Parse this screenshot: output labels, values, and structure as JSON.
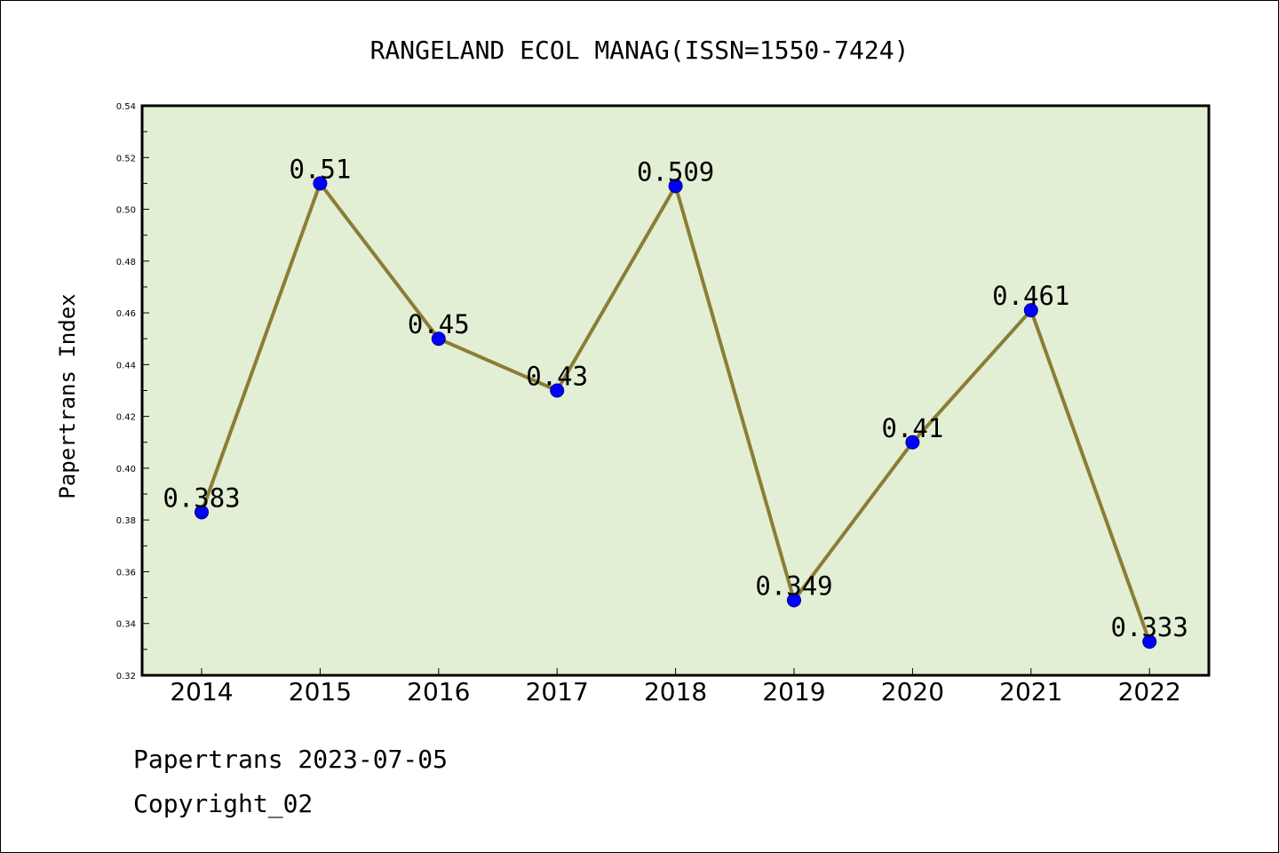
{
  "chart_data": {
    "type": "line",
    "title": "RANGELAND ECOL MANAG(ISSN=1550-7424)",
    "xlabel": "",
    "ylabel": "Papertrans Index",
    "categories": [
      "2014",
      "2015",
      "2016",
      "2017",
      "2018",
      "2019",
      "2020",
      "2021",
      "2022"
    ],
    "values": [
      0.383,
      0.51,
      0.45,
      0.43,
      0.509,
      0.349,
      0.41,
      0.461,
      0.333
    ],
    "data_labels": [
      "0.383",
      "0.51",
      "0.45",
      "0.43",
      "0.509",
      "0.349",
      "0.41",
      "0.461",
      "0.333"
    ],
    "ylim": [
      0.32,
      0.54
    ],
    "yticks": [
      "0.32",
      "0.34",
      "0.36",
      "0.38",
      "0.40",
      "0.42",
      "0.44",
      "0.46",
      "0.48",
      "0.50",
      "0.52",
      "0.54"
    ],
    "grid": false,
    "legend": "none",
    "colors": {
      "plot_background": "#e2efd5",
      "line": "#8b7d35",
      "marker_fill": "#0000ff",
      "marker_edge": "#000080"
    }
  },
  "footer": {
    "line1": "Papertrans 2023-07-05",
    "line2": "Copyright_02"
  }
}
